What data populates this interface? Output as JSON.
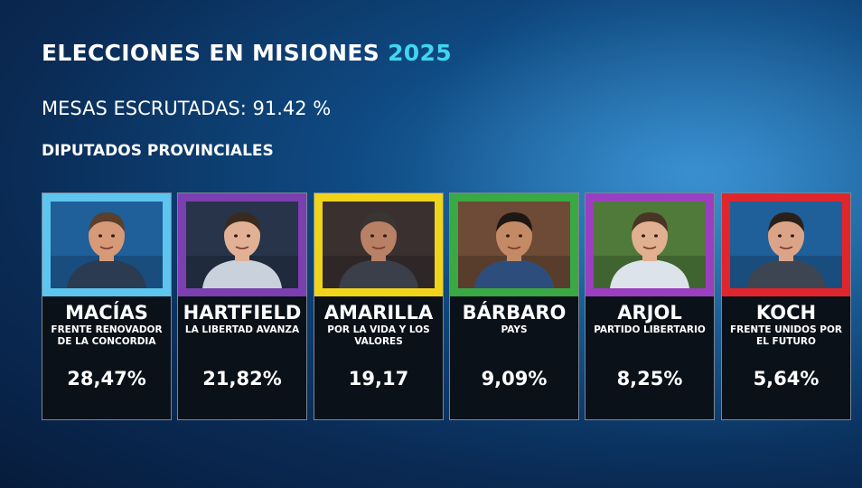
{
  "header": {
    "title_main": "ELECCIONES EN MISIONES",
    "title_year": "2025",
    "subtitle": "MESAS ESCRUTADAS: 91.42 %",
    "section": "DIPUTADOS PROVINCIALES"
  },
  "colors": {
    "year_accent": "#3fd6ef"
  },
  "candidates": [
    {
      "name": "MACÍAS",
      "party": "FRENTE RENOVADOR DE LA CONCORDIA",
      "percent": "28,47%",
      "color": "#5ec5ef",
      "bg": "#1f5f9a",
      "skin": "#d69a78",
      "shirt": "#2a3b52",
      "hair": "#5a3f2a"
    },
    {
      "name": "HARTFIELD",
      "party": "LA LIBERTAD AVANZA",
      "percent": "21,82%",
      "color": "#7b3fb0",
      "bg": "#27344a",
      "skin": "#e2b195",
      "shirt": "#c9d2dc",
      "hair": "#3a2a1e"
    },
    {
      "name": "AMARILLA",
      "party": "POR LA VIDA Y LOS VALORES",
      "percent": "19,17",
      "color": "#f0d41c",
      "bg": "#3a3030",
      "skin": "#b88064",
      "shirt": "#3b3f4a",
      "hair": "#3a3532"
    },
    {
      "name": "BÁRBARO",
      "party": "PAYS",
      "percent": "9,09%",
      "color": "#3aa844",
      "bg": "#6d4b36",
      "skin": "#c48a66",
      "shirt": "#2d4e7c",
      "hair": "#1e1713"
    },
    {
      "name": "ARJOL",
      "party": "PARTIDO LIBERTARIO",
      "percent": "8,25%",
      "color": "#9a3fc0",
      "bg": "#4f7a3a",
      "skin": "#e0b091",
      "shirt": "#dde3ea",
      "hair": "#4a3424"
    },
    {
      "name": "KOCH",
      "party": "FRENTE UNIDOS POR EL FUTURO",
      "percent": "5,64%",
      "color": "#e0262d",
      "bg": "#1f5f9a",
      "skin": "#dba488",
      "shirt": "#3d4552",
      "hair": "#2a201a"
    }
  ]
}
